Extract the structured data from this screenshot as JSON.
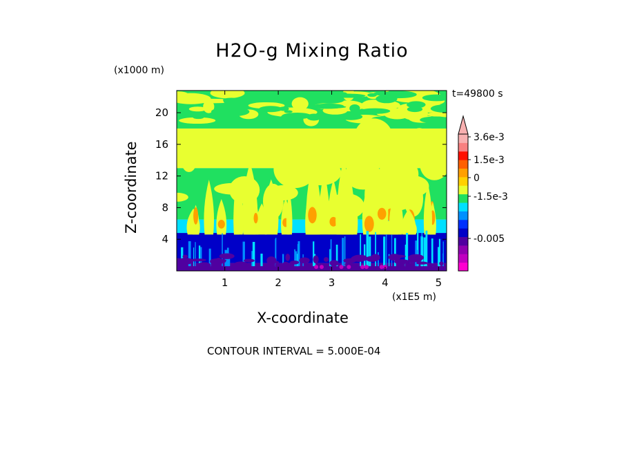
{
  "chart_data": {
    "type": "heatmap",
    "title": "H2O-g Mixing Ratio",
    "xlabel": "X-coordinate",
    "ylabel": "Z-coordinate",
    "x_unit": "(x1E5 m)",
    "y_unit": "(x1000 m)",
    "time_label": "t=49800 s",
    "contour_interval": "CONTOUR INTERVAL = 5.000E-04",
    "xlim": [
      0.1,
      5.15
    ],
    "ylim": [
      0,
      22.8
    ],
    "x_ticks": [
      "1",
      "2",
      "3",
      "4",
      "5"
    ],
    "y_ticks": [
      "4",
      "8",
      "12",
      "16",
      "20"
    ],
    "x_tick_values": [
      1,
      2,
      3,
      4,
      5
    ],
    "y_tick_values": [
      4,
      8,
      12,
      16,
      20
    ],
    "bands": [
      {
        "z0": 0.0,
        "z1": 1.0,
        "level": "-4.0e-3"
      },
      {
        "z0": 1.0,
        "z1": 4.8,
        "level": "-2.0e-3"
      },
      {
        "z0": 4.8,
        "z1": 6.5,
        "level": "-1.0e-3"
      },
      {
        "z0": 6.5,
        "z1": 13.0,
        "level": "0"
      },
      {
        "z0": 13.0,
        "z1": 18.0,
        "level": "0"
      },
      {
        "z0": 18.0,
        "z1": 22.8,
        "level": "0"
      }
    ],
    "colorbar": {
      "labels": [
        "3.6e-3",
        "1.5e-3",
        "0",
        "-1.5e-3",
        "-0.005"
      ],
      "colors": [
        "#ff00d0",
        "#c000c0",
        "#9000b0",
        "#5000a0",
        "#0000c8",
        "#0030ff",
        "#0090ff",
        "#00e0ff",
        "#20e060",
        "#e8ff30",
        "#ffd000",
        "#ffa000",
        "#ff6000",
        "#ff1000",
        "#f88080",
        "#f8b0b0"
      ]
    }
  }
}
